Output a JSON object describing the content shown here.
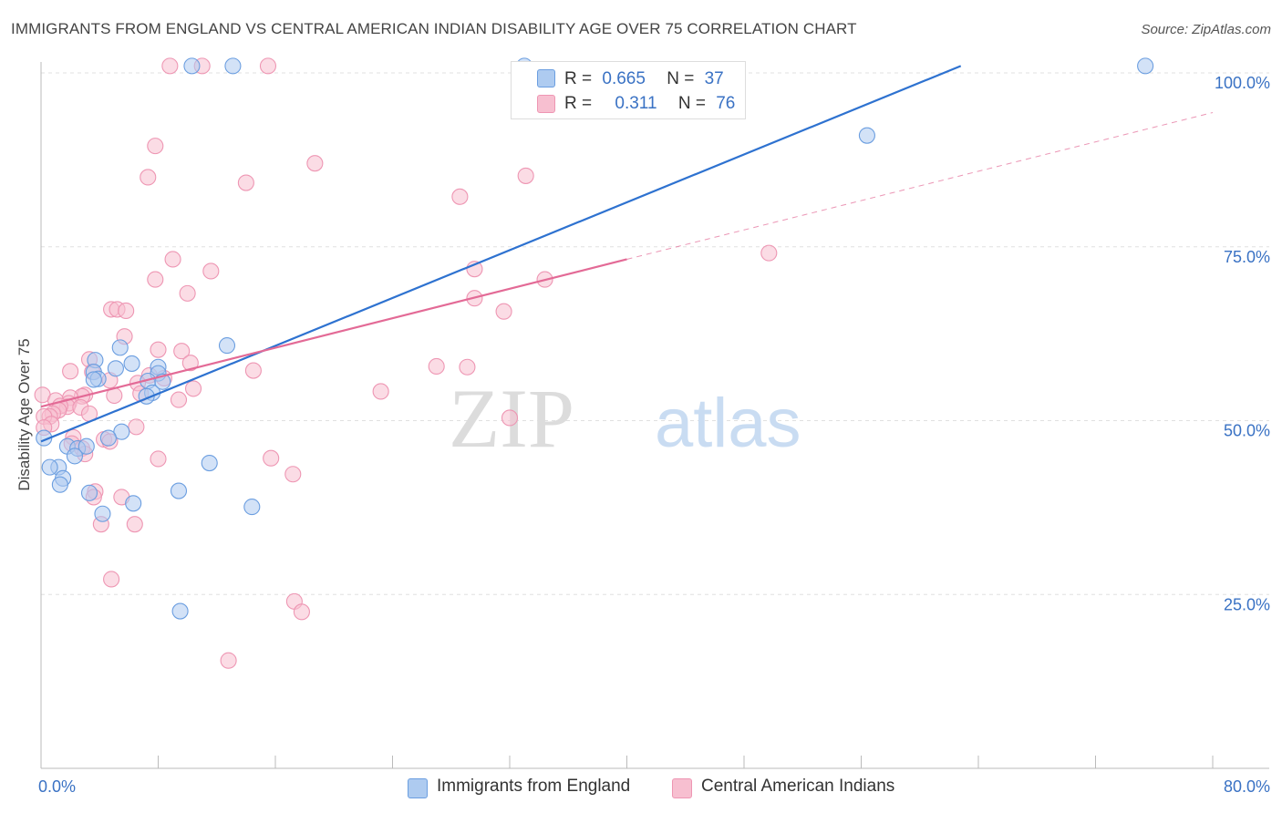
{
  "title": "IMMIGRANTS FROM ENGLAND VS CENTRAL AMERICAN INDIAN DISABILITY AGE OVER 75 CORRELATION CHART",
  "source": "Source: ZipAtlas.com",
  "watermark": {
    "part1": "ZIP",
    "part2": "atlas"
  },
  "legend": {
    "blue": {
      "r_label": "R =",
      "r_value": "0.665",
      "n_label": "N =",
      "n_value": "37"
    },
    "pink": {
      "r_label": "R =",
      "r_value": "0.311",
      "n_label": "N =",
      "n_value": "76"
    }
  },
  "colors": {
    "blue_fill": "#aecbf0",
    "blue_stroke": "#6b9ee0",
    "blue_line": "#2e72d0",
    "pink_fill": "#f7bfd0",
    "pink_stroke": "#ee96b3",
    "pink_line": "#e36a96",
    "axis_text": "#3a72c4",
    "grid": "#e0e0e0"
  },
  "chart_data": {
    "type": "scatter",
    "title": "IMMIGRANTS FROM ENGLAND VS CENTRAL AMERICAN INDIAN DISABILITY AGE OVER 75 CORRELATION CHART",
    "xlabel": "",
    "ylabel": "Disability Age Over 75",
    "xlim": [
      0,
      80
    ],
    "ylim": [
      0,
      105
    ],
    "x_tick_labels": [
      "0.0%",
      "80.0%"
    ],
    "y_ticks": [
      25,
      50,
      75,
      100
    ],
    "y_tick_labels": [
      "25.0%",
      "50.0%",
      "75.0%",
      "100.0%"
    ],
    "grid": "horizontal dashed",
    "legend_position": "top-center",
    "series": [
      {
        "name": "Immigrants from England",
        "color": "#6b9ee0",
        "points": [
          [
            10.3,
            101
          ],
          [
            13.1,
            101
          ],
          [
            33,
            101
          ],
          [
            75.4,
            101
          ],
          [
            56.4,
            91
          ],
          [
            5.4,
            60.5
          ],
          [
            12.7,
            60.8
          ],
          [
            3.7,
            58.7
          ],
          [
            6.2,
            58.2
          ],
          [
            5.1,
            57.5
          ],
          [
            3.6,
            57
          ],
          [
            8,
            57.7
          ],
          [
            3.9,
            56
          ],
          [
            3.6,
            55.9
          ],
          [
            8,
            56.8
          ],
          [
            7.3,
            55.7
          ],
          [
            7.6,
            54
          ],
          [
            7.2,
            53.5
          ],
          [
            5.5,
            48.4
          ],
          [
            4.6,
            47.5
          ],
          [
            0.2,
            47.5
          ],
          [
            1.8,
            46.3
          ],
          [
            2.5,
            46
          ],
          [
            3.1,
            46.3
          ],
          [
            2.3,
            44.9
          ],
          [
            1.2,
            43.3
          ],
          [
            0.6,
            43.3
          ],
          [
            11.5,
            43.9
          ],
          [
            1.5,
            41.7
          ],
          [
            1.3,
            40.8
          ],
          [
            3.3,
            39.6
          ],
          [
            9.4,
            39.9
          ],
          [
            6.3,
            38.1
          ],
          [
            14.4,
            37.6
          ],
          [
            4.2,
            36.6
          ],
          [
            9.5,
            22.6
          ],
          [
            8.3,
            55.6
          ]
        ]
      },
      {
        "name": "Central American Indians",
        "color": "#ee96b3",
        "points": [
          [
            8.8,
            101
          ],
          [
            11,
            101
          ],
          [
            15.5,
            101
          ],
          [
            7.8,
            89.5
          ],
          [
            18.7,
            87
          ],
          [
            7.3,
            85
          ],
          [
            14,
            84.2
          ],
          [
            33.1,
            85.2
          ],
          [
            28.6,
            82.2
          ],
          [
            9,
            73.2
          ],
          [
            11.6,
            71.5
          ],
          [
            29.6,
            71.8
          ],
          [
            7.8,
            70.3
          ],
          [
            34.4,
            70.3
          ],
          [
            10,
            68.3
          ],
          [
            49.7,
            74.1
          ],
          [
            29.6,
            67.6
          ],
          [
            31.6,
            65.7
          ],
          [
            4.8,
            66
          ],
          [
            5.2,
            66
          ],
          [
            5.8,
            65.8
          ],
          [
            5.7,
            62.1
          ],
          [
            8,
            60.2
          ],
          [
            9.6,
            60
          ],
          [
            3.3,
            58.8
          ],
          [
            10.2,
            58.3
          ],
          [
            27,
            57.8
          ],
          [
            29.1,
            57.7
          ],
          [
            14.5,
            57.2
          ],
          [
            2,
            57.1
          ],
          [
            3.5,
            57
          ],
          [
            7.4,
            56.5
          ],
          [
            8.4,
            56.1
          ],
          [
            6.6,
            55.4
          ],
          [
            4.7,
            55.8
          ],
          [
            10.4,
            54.6
          ],
          [
            23.2,
            54.2
          ],
          [
            6.8,
            53.9
          ],
          [
            0.1,
            53.7
          ],
          [
            3,
            53.7
          ],
          [
            5,
            53.6
          ],
          [
            2.8,
            53.5
          ],
          [
            2,
            53.3
          ],
          [
            9.4,
            53
          ],
          [
            1,
            52.9
          ],
          [
            1.9,
            52.5
          ],
          [
            1.8,
            52
          ],
          [
            1.3,
            52.1
          ],
          [
            2.7,
            51.9
          ],
          [
            1.2,
            51.5
          ],
          [
            0.8,
            51
          ],
          [
            3.3,
            51
          ],
          [
            0.6,
            50.6
          ],
          [
            0.2,
            50.6
          ],
          [
            32,
            50.4
          ],
          [
            0.7,
            49.5
          ],
          [
            0.2,
            49
          ],
          [
            6.5,
            49.1
          ],
          [
            2.2,
            47.6
          ],
          [
            4.3,
            47.3
          ],
          [
            4.7,
            47
          ],
          [
            2.1,
            46.7
          ],
          [
            2.8,
            46
          ],
          [
            3,
            45.2
          ],
          [
            8,
            44.5
          ],
          [
            15.7,
            44.6
          ],
          [
            17.2,
            42.3
          ],
          [
            3.7,
            39.8
          ],
          [
            3.6,
            39
          ],
          [
            5.5,
            39
          ],
          [
            4.1,
            35.1
          ],
          [
            6.4,
            35.1
          ],
          [
            4.8,
            27.2
          ],
          [
            17.3,
            24
          ],
          [
            17.8,
            22.5
          ],
          [
            12.8,
            15.5
          ]
        ]
      }
    ],
    "trendlines": [
      {
        "series": "Immigrants from England",
        "x": [
          0,
          62.8
        ],
        "y": [
          47,
          101
        ]
      },
      {
        "series": "Central American Indians",
        "x": [
          0,
          40
        ],
        "y": [
          52,
          73.2
        ],
        "dashed_extension_x": [
          40,
          80
        ],
        "dashed_extension_y": [
          73.2,
          94.3
        ]
      }
    ]
  },
  "bottom_legend": [
    {
      "label": "Immigrants from England"
    },
    {
      "label": "Central American Indians"
    }
  ]
}
